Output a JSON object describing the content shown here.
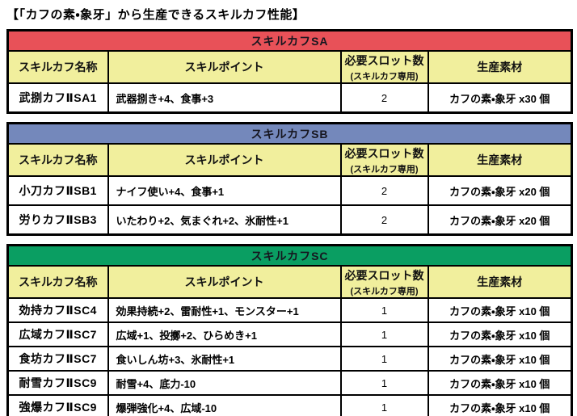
{
  "page_title": "【「カフの素・象牙」から生産できるスキルカフ性能】",
  "columns": {
    "name": "スキルカフ名称",
    "skills": "スキルポイント",
    "slots": "必要スロット数",
    "slots_sub": "(スキルカフ専用)",
    "materials": "生産素材"
  },
  "colors": {
    "sa_band": "#e85158",
    "sb_band": "#7488bb",
    "sc_band": "#0a9e62",
    "column_header": "#f1ef9d",
    "border": "#000000",
    "band_text": "#16161f"
  },
  "tables": [
    {
      "title": "スキルカフSA",
      "rows": [
        {
          "name": "武捌カフⅡSA1",
          "skills": "武器捌き+4、食事+3",
          "slots": "2",
          "materials": "カフの素・象牙 x30 個"
        }
      ]
    },
    {
      "title": "スキルカフSB",
      "rows": [
        {
          "name": "小刀カフⅡSB1",
          "skills": "ナイフ使い+4、食事+1",
          "slots": "2",
          "materials": "カフの素・象牙 x20 個"
        },
        {
          "name": "労りカフⅡSB3",
          "skills": "いたわり+2、気まぐれ+2、氷耐性+1",
          "slots": "2",
          "materials": "カフの素・象牙 x20 個"
        }
      ]
    },
    {
      "title": "スキルカフSC",
      "rows": [
        {
          "name": "効持カフⅡSC4",
          "skills": "効果持続+2、雷耐性+1、モンスター+1",
          "slots": "1",
          "materials": "カフの素・象牙 x10 個"
        },
        {
          "name": "広域カフⅡSC7",
          "skills": "広域+1、投擲+2、ひらめき+1",
          "slots": "1",
          "materials": "カフの素・象牙 x10 個"
        },
        {
          "name": "食坊カフⅡSC7",
          "skills": "食いしん坊+3、氷耐性+1",
          "slots": "1",
          "materials": "カフの素・象牙 x10 個"
        },
        {
          "name": "耐雪カフⅡSC9",
          "skills": "耐雪+4、底力-10",
          "slots": "1",
          "materials": "カフの素・象牙 x10 個"
        },
        {
          "name": "強爆カフⅡSC9",
          "skills": "爆弾強化+4、広域-10",
          "slots": "1",
          "materials": "カフの素・象牙 x10 個"
        }
      ]
    }
  ]
}
